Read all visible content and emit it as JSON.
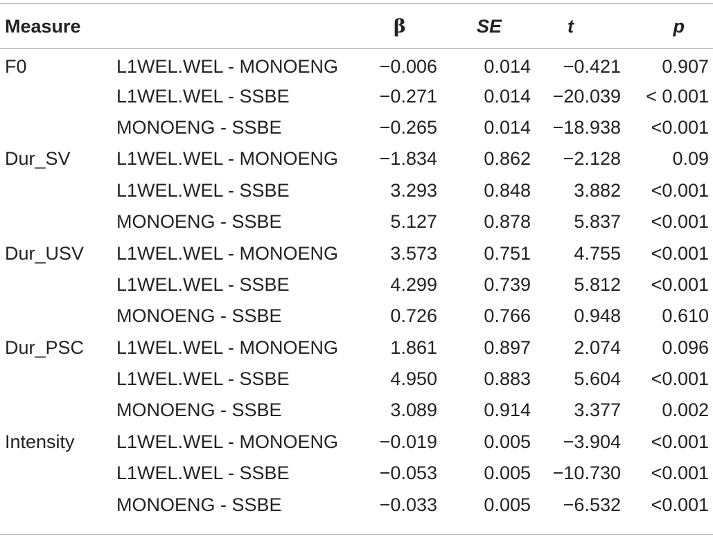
{
  "table": {
    "headers": {
      "measure": "Measure",
      "contrast": "",
      "beta": "β",
      "se": "SE",
      "t": "t",
      "p": "p"
    },
    "rows": [
      {
        "measure": "F0",
        "contrast": "L1WEL.WEL - MONOENG",
        "beta": "−0.006",
        "se": "0.014",
        "t": "−0.421",
        "p": "0.907"
      },
      {
        "measure": "",
        "contrast": "L1WEL.WEL - SSBE",
        "beta": "−0.271",
        "se": "0.014",
        "t": "−20.039",
        "p": "< 0.001"
      },
      {
        "measure": "",
        "contrast": "MONOENG - SSBE",
        "beta": "−0.265",
        "se": "0.014",
        "t": "−18.938",
        "p": "<0.001"
      },
      {
        "measure": "Dur_SV",
        "contrast": "L1WEL.WEL - MONOENG",
        "beta": "−1.834",
        "se": "0.862",
        "t": "−2.128",
        "p": "0.09"
      },
      {
        "measure": "",
        "contrast": "L1WEL.WEL - SSBE",
        "beta": "3.293",
        "se": "0.848",
        "t": "3.882",
        "p": "<0.001"
      },
      {
        "measure": "",
        "contrast": "MONOENG - SSBE",
        "beta": "5.127",
        "se": "0.878",
        "t": "5.837",
        "p": "<0.001"
      },
      {
        "measure": "Dur_USV",
        "contrast": "L1WEL.WEL - MONOENG",
        "beta": "3.573",
        "se": "0.751",
        "t": "4.755",
        "p": "<0.001"
      },
      {
        "measure": "",
        "contrast": "L1WEL.WEL - SSBE",
        "beta": "4.299",
        "se": "0.739",
        "t": "5.812",
        "p": "<0.001"
      },
      {
        "measure": "",
        "contrast": "MONOENG - SSBE",
        "beta": "0.726",
        "se": "0.766",
        "t": "0.948",
        "p": "0.610"
      },
      {
        "measure": "Dur_PSC",
        "contrast": "L1WEL.WEL - MONOENG",
        "beta": "1.861",
        "se": "0.897",
        "t": "2.074",
        "p": "0.096"
      },
      {
        "measure": "",
        "contrast": "L1WEL.WEL - SSBE",
        "beta": "4.950",
        "se": "0.883",
        "t": "5.604",
        "p": "<0.001"
      },
      {
        "measure": "",
        "contrast": "MONOENG - SSBE",
        "beta": "3.089",
        "se": "0.914",
        "t": "3.377",
        "p": "0.002"
      },
      {
        "measure": "Intensity",
        "contrast": "L1WEL.WEL - MONOENG",
        "beta": "−0.019",
        "se": "0.005",
        "t": "−3.904",
        "p": "<0.001"
      },
      {
        "measure": "",
        "contrast": "L1WEL.WEL - SSBE",
        "beta": "−0.053",
        "se": "0.005",
        "t": "−10.730",
        "p": "<0.001"
      },
      {
        "measure": "",
        "contrast": "MONOENG - SSBE",
        "beta": "−0.033",
        "se": "0.005",
        "t": "−6.532",
        "p": "<0.001"
      }
    ]
  },
  "colors": {
    "text": "#222222",
    "rule": "#9a9a9a",
    "background": "#ffffff"
  }
}
